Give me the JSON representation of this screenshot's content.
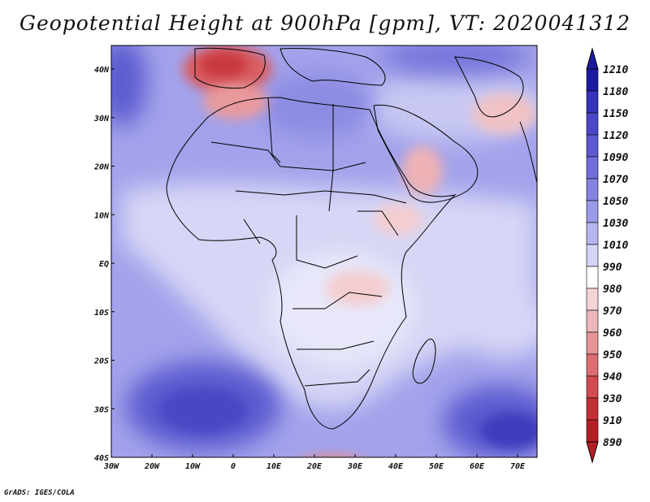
{
  "figure": {
    "title": "Geopotential Height at 900hPa [gpm], VT: 2020041312",
    "credit": "GrADS: IGES/COLA"
  },
  "map": {
    "lon_range": [
      -30,
      75
    ],
    "lat_range": [
      -40,
      45
    ],
    "lon_ticks": [
      "30W",
      "20W",
      "10W",
      "0",
      "10E",
      "20E",
      "30E",
      "40E",
      "50E",
      "60E",
      "70E"
    ],
    "lat_ticks": [
      "40N",
      "30N",
      "20N",
      "10N",
      "EQ",
      "10S",
      "20S",
      "30S",
      "40S"
    ]
  },
  "colorbar": {
    "levels": [
      "1210",
      "1180",
      "1150",
      "1120",
      "1090",
      "1070",
      "1050",
      "1030",
      "1010",
      "990",
      "980",
      "970",
      "960",
      "950",
      "940",
      "930",
      "910",
      "890"
    ],
    "colors": [
      "#1c1a9e",
      "#3533b8",
      "#4a48c6",
      "#5b5ad0",
      "#6e6dd9",
      "#8483e1",
      "#9b9ae8",
      "#b6b5ef",
      "#d4d4f6",
      "#ffffff",
      "#f5d4d6",
      "#eeb6b9",
      "#e69497",
      "#dc6e72",
      "#d14b50",
      "#c42f34",
      "#b51f24"
    ],
    "extend_top_color": "#1c1a9e",
    "extend_bottom_color": "#b51f24"
  }
}
